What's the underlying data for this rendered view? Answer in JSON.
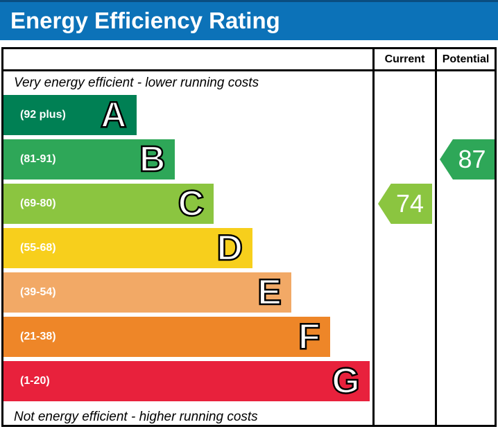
{
  "header": {
    "title": "Energy Efficiency Rating",
    "bg_color": "#0c72b8"
  },
  "table": {
    "columns": [
      "Current",
      "Potential"
    ],
    "top_note": "Very energy efficient - lower running costs",
    "bottom_note": "Not energy efficient - higher running costs"
  },
  "chart_data": {
    "type": "bar",
    "subtype": "epc-energy-efficiency-rating",
    "orientation": "horizontal",
    "title": "Energy Efficiency Rating",
    "column_headers": [
      "Current",
      "Potential"
    ],
    "annotations": {
      "top": "Very energy efficient - lower running costs",
      "bottom": "Not energy efficient - higher running costs"
    },
    "bands": [
      {
        "letter": "A",
        "range_label": "(92 plus)",
        "min": 92,
        "max": 100,
        "color": "#008054",
        "width_pct": 36
      },
      {
        "letter": "B",
        "range_label": "(81-91)",
        "min": 81,
        "max": 91,
        "color": "#2ea758",
        "width_pct": 46.5
      },
      {
        "letter": "C",
        "range_label": "(69-80)",
        "min": 69,
        "max": 80,
        "color": "#8bc540",
        "width_pct": 57
      },
      {
        "letter": "D",
        "range_label": "(55-68)",
        "min": 55,
        "max": 68,
        "color": "#f7cf1c",
        "width_pct": 67.5
      },
      {
        "letter": "E",
        "range_label": "(39-54)",
        "min": 39,
        "max": 54,
        "color": "#f2a966",
        "width_pct": 78
      },
      {
        "letter": "F",
        "range_label": "(21-38)",
        "min": 21,
        "max": 38,
        "color": "#ee8628",
        "width_pct": 88.5
      },
      {
        "letter": "G",
        "range_label": "(1-20)",
        "min": 1,
        "max": 20,
        "color": "#e8213c",
        "width_pct": 99.2
      }
    ],
    "markers": [
      {
        "name": "Current",
        "value": 74,
        "band": "C",
        "color": "#8bc540"
      },
      {
        "name": "Potential",
        "value": 87,
        "band": "B",
        "color": "#2ea758"
      }
    ]
  }
}
